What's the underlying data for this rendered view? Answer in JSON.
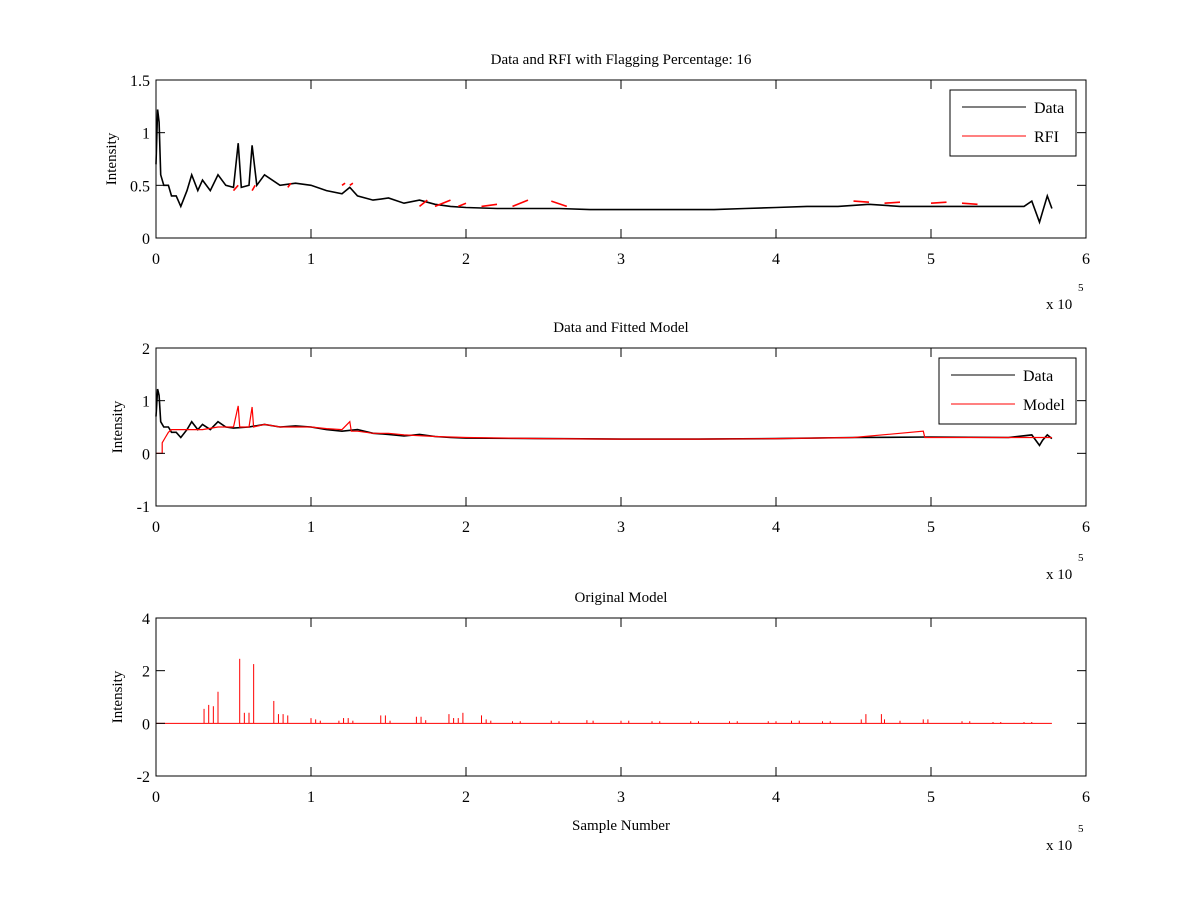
{
  "chart_data": [
    {
      "type": "line",
      "title": "Data and RFI with Flagging Percentage: 16",
      "xlabel": "",
      "ylabel": "Intensity",
      "xlim": [
        0,
        6
      ],
      "ylim": [
        0,
        1.5
      ],
      "xticks": [
        "0",
        "1",
        "2",
        "3",
        "4",
        "5",
        "6"
      ],
      "yticks": [
        "0",
        "0.5",
        "1",
        "1.5"
      ],
      "ytick_values": [
        0,
        0.5,
        1,
        1.5
      ],
      "x_multiplier": {
        "base": "x 10",
        "exponent": "5"
      },
      "legend": {
        "position": "top-right",
        "entries": [
          {
            "label": "Data",
            "color": "#000000"
          },
          {
            "label": "RFI",
            "color": "#ff0000"
          }
        ]
      },
      "series": [
        {
          "name": "Data",
          "color": "#000000",
          "x": [
            0,
            0.01,
            0.02,
            0.03,
            0.05,
            0.08,
            0.1,
            0.13,
            0.16,
            0.2,
            0.23,
            0.27,
            0.3,
            0.35,
            0.4,
            0.45,
            0.5,
            0.53,
            0.55,
            0.6,
            0.62,
            0.65,
            0.7,
            0.8,
            0.9,
            1.0,
            1.1,
            1.2,
            1.25,
            1.3,
            1.4,
            1.5,
            1.6,
            1.7,
            1.8,
            1.9,
            2.0,
            2.2,
            2.4,
            2.6,
            2.8,
            3.0,
            3.2,
            3.4,
            3.6,
            3.8,
            4.0,
            4.2,
            4.4,
            4.6,
            4.8,
            5.0,
            5.2,
            5.4,
            5.6,
            5.65,
            5.7,
            5.72,
            5.75,
            5.78
          ],
          "y": [
            0.7,
            1.22,
            1.1,
            0.6,
            0.5,
            0.5,
            0.4,
            0.4,
            0.3,
            0.45,
            0.6,
            0.45,
            0.55,
            0.45,
            0.6,
            0.5,
            0.48,
            0.9,
            0.48,
            0.5,
            0.88,
            0.5,
            0.6,
            0.5,
            0.52,
            0.5,
            0.45,
            0.42,
            0.48,
            0.4,
            0.36,
            0.38,
            0.33,
            0.36,
            0.32,
            0.3,
            0.29,
            0.28,
            0.28,
            0.28,
            0.27,
            0.27,
            0.27,
            0.27,
            0.27,
            0.28,
            0.29,
            0.3,
            0.3,
            0.32,
            0.3,
            0.3,
            0.3,
            0.3,
            0.3,
            0.35,
            0.15,
            0.25,
            0.4,
            0.28
          ]
        },
        {
          "name": "RFI",
          "color": "#ff0000",
          "x": [
            0.5,
            0.53,
            0.62,
            0.64,
            0.85,
            0.87,
            1.2,
            1.22,
            1.25,
            1.27,
            1.7,
            1.75,
            1.8,
            1.9,
            1.95,
            2.0,
            2.1,
            2.2,
            2.3,
            2.4,
            2.55,
            2.65,
            4.5,
            4.6,
            4.7,
            4.8,
            5.0,
            5.1,
            5.2,
            5.3,
            5.65
          ],
          "y": [
            0.45,
            0.5,
            0.45,
            0.5,
            0.48,
            0.52,
            0.5,
            0.52,
            0.5,
            0.52,
            0.3,
            0.36,
            0.3,
            0.36,
            0.3,
            0.33,
            0.3,
            0.32,
            0.3,
            0.36,
            0.35,
            0.3,
            0.35,
            0.34,
            0.33,
            0.34,
            0.33,
            0.34,
            0.33,
            0.32,
            0.37
          ]
        }
      ]
    },
    {
      "type": "line",
      "title": "Data and Fitted Model",
      "xlabel": "",
      "ylabel": "Intensity",
      "xlim": [
        0,
        6
      ],
      "ylim": [
        -1,
        2
      ],
      "xticks": [
        "0",
        "1",
        "2",
        "3",
        "4",
        "5",
        "6"
      ],
      "yticks": [
        "-1",
        "0",
        "1",
        "2"
      ],
      "ytick_values": [
        -1,
        0,
        1,
        2
      ],
      "x_multiplier": {
        "base": "x 10",
        "exponent": "5"
      },
      "legend": {
        "position": "top-right",
        "entries": [
          {
            "label": "Data",
            "color": "#000000"
          },
          {
            "label": "Model",
            "color": "#ff0000"
          }
        ]
      },
      "series": [
        {
          "name": "Data",
          "color": "#000000",
          "x": [
            0,
            0.01,
            0.02,
            0.03,
            0.05,
            0.08,
            0.1,
            0.13,
            0.16,
            0.2,
            0.23,
            0.27,
            0.3,
            0.35,
            0.4,
            0.45,
            0.5,
            0.6,
            0.7,
            0.8,
            0.9,
            1.0,
            1.1,
            1.2,
            1.3,
            1.4,
            1.5,
            1.6,
            1.7,
            1.8,
            1.9,
            2.0,
            2.5,
            3.0,
            3.5,
            4.0,
            4.5,
            5.0,
            5.5,
            5.65,
            5.7,
            5.72,
            5.75,
            5.78
          ],
          "y": [
            0.7,
            1.22,
            1.1,
            0.6,
            0.5,
            0.5,
            0.4,
            0.4,
            0.3,
            0.45,
            0.6,
            0.45,
            0.55,
            0.45,
            0.6,
            0.5,
            0.48,
            0.5,
            0.55,
            0.5,
            0.52,
            0.5,
            0.45,
            0.42,
            0.45,
            0.38,
            0.36,
            0.33,
            0.36,
            0.32,
            0.3,
            0.29,
            0.28,
            0.27,
            0.27,
            0.28,
            0.3,
            0.31,
            0.3,
            0.35,
            0.15,
            0.25,
            0.35,
            0.28
          ]
        },
        {
          "name": "Model",
          "color": "#ff0000",
          "x": [
            0,
            0.04,
            0.04,
            0.06,
            0.08,
            0.1,
            0.2,
            0.3,
            0.4,
            0.5,
            0.53,
            0.54,
            0.6,
            0.62,
            0.63,
            0.7,
            0.8,
            0.9,
            1.0,
            1.1,
            1.2,
            1.25,
            1.26,
            1.3,
            1.4,
            1.5,
            1.6,
            1.8,
            2.0,
            2.5,
            3.0,
            3.5,
            4.0,
            4.5,
            4.95,
            4.96,
            5.0,
            5.5,
            5.78
          ],
          "y": [
            0,
            0,
            0.2,
            0.3,
            0.4,
            0.45,
            0.45,
            0.45,
            0.5,
            0.5,
            0.9,
            0.5,
            0.5,
            0.88,
            0.5,
            0.55,
            0.5,
            0.5,
            0.5,
            0.47,
            0.45,
            0.6,
            0.42,
            0.42,
            0.38,
            0.38,
            0.35,
            0.32,
            0.3,
            0.28,
            0.27,
            0.27,
            0.28,
            0.3,
            0.42,
            0.3,
            0.3,
            0.3,
            0.3
          ]
        }
      ]
    },
    {
      "type": "line",
      "title": "Original Model",
      "xlabel": "Sample Number",
      "ylabel": "Intensity",
      "xlim": [
        0,
        6
      ],
      "ylim": [
        -2,
        4
      ],
      "xticks": [
        "0",
        "1",
        "2",
        "3",
        "4",
        "5",
        "6"
      ],
      "yticks": [
        "-2",
        "0",
        "2",
        "4"
      ],
      "ytick_values": [
        -2,
        0,
        2,
        4
      ],
      "x_multiplier": {
        "base": "x 10",
        "exponent": "5"
      },
      "series": [
        {
          "name": "Original Model",
          "color": "#ff0000",
          "baseline": 0,
          "x_end": 5.78,
          "spikes_x": [
            0.31,
            0.34,
            0.37,
            0.4,
            0.54,
            0.57,
            0.6,
            0.63,
            0.76,
            0.79,
            0.82,
            0.85,
            1.0,
            1.03,
            1.06,
            1.18,
            1.21,
            1.24,
            1.27,
            1.45,
            1.48,
            1.51,
            1.68,
            1.71,
            1.74,
            1.89,
            1.92,
            1.95,
            1.98,
            2.1,
            2.13,
            2.16,
            2.3,
            2.35,
            2.55,
            2.6,
            2.78,
            2.82,
            3.0,
            3.05,
            3.2,
            3.25,
            3.45,
            3.5,
            3.7,
            3.75,
            3.95,
            4.0,
            4.1,
            4.15,
            4.3,
            4.35,
            4.55,
            4.58,
            4.68,
            4.7,
            4.8,
            4.95,
            4.98,
            5.2,
            5.25,
            5.4,
            5.45,
            5.6,
            5.65
          ],
          "spikes_y": [
            0.55,
            0.7,
            0.65,
            1.2,
            2.45,
            0.4,
            0.4,
            2.25,
            0.85,
            0.35,
            0.35,
            0.3,
            0.2,
            0.15,
            0.1,
            0.1,
            0.2,
            0.2,
            0.1,
            0.3,
            0.3,
            0.1,
            0.25,
            0.25,
            0.12,
            0.35,
            0.2,
            0.2,
            0.4,
            0.3,
            0.15,
            0.1,
            0.08,
            0.08,
            0.1,
            0.08,
            0.12,
            0.1,
            0.1,
            0.1,
            0.08,
            0.08,
            0.08,
            0.08,
            0.08,
            0.08,
            0.08,
            0.08,
            0.1,
            0.1,
            0.08,
            0.08,
            0.15,
            0.35,
            0.35,
            0.15,
            0.1,
            0.15,
            0.15,
            0.08,
            0.08,
            0.05,
            0.05,
            0.05,
            0.05
          ]
        }
      ]
    }
  ]
}
